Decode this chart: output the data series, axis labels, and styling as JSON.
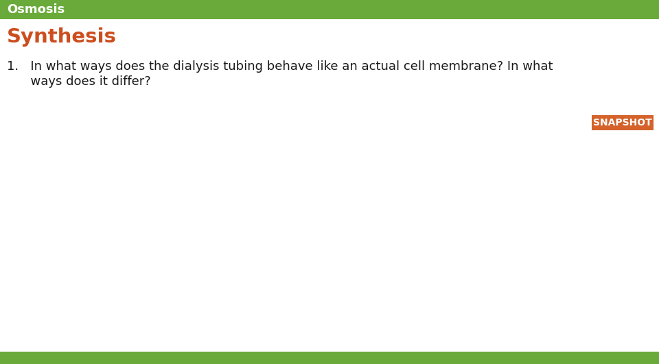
{
  "header_text": "Osmosis",
  "header_bg_color": "#6aaa3a",
  "header_text_color": "#ffffff",
  "header_font_size": 13,
  "header_font_weight": "bold",
  "title_text": "Synthesis",
  "title_color": "#cc4e1e",
  "title_font_size": 21,
  "title_font_weight": "bold",
  "body_line1": "1.   In what ways does the dialysis tubing behave like an actual cell membrane? In what",
  "body_line2": "      ways does it differ?",
  "body_color": "#1a1a1a",
  "body_font_size": 13,
  "snapshot_text": "SNAPSHOT",
  "snapshot_bg_color": "#d4622a",
  "snapshot_text_color": "#ffffff",
  "snapshot_font_size": 10,
  "snapshot_font_weight": "bold",
  "background_color": "#ffffff",
  "header_bar_color": "#6aaa3a",
  "footer_bar_color": "#6aaa3a"
}
